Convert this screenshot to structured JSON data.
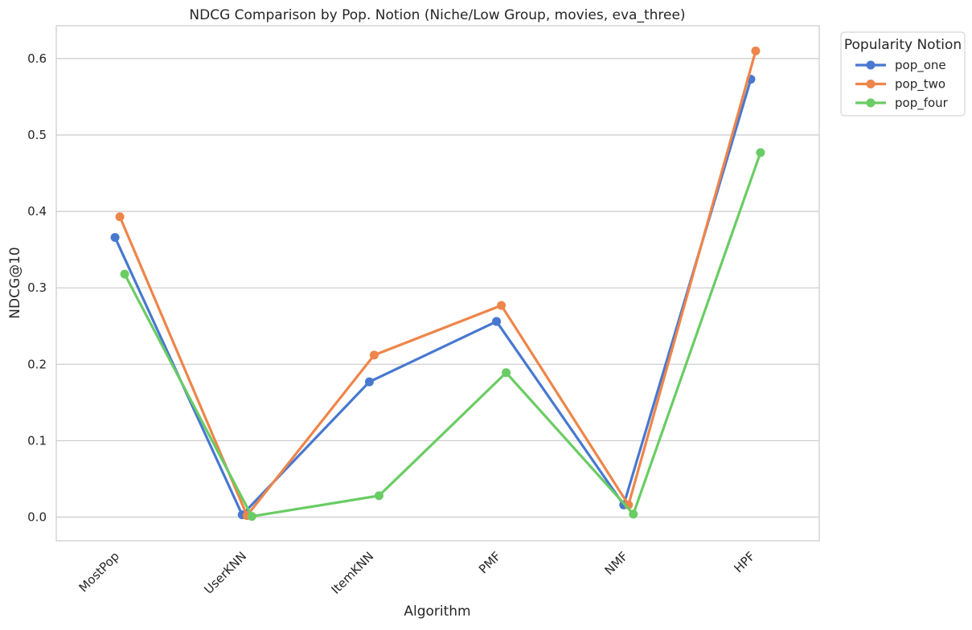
{
  "chart_data": {
    "type": "line",
    "title": "NDCG Comparison by Pop. Notion (Niche/Low Group, movies, eva_three)",
    "xlabel": "Algorithm",
    "ylabel": "NDCG@10",
    "categories": [
      "MostPop",
      "UserKNN",
      "ItemKNN",
      "PMF",
      "NMF",
      "HPF"
    ],
    "ylim": [
      -0.031,
      0.643
    ],
    "yticks": [
      0.0,
      0.1,
      0.2,
      0.3,
      0.4,
      0.5,
      0.6
    ],
    "ytick_labels": [
      "0.0",
      "0.1",
      "0.2",
      "0.3",
      "0.4",
      "0.5",
      "0.6"
    ],
    "grid": "horizontal",
    "legend": {
      "title": "Popularity Notion",
      "placement": "outside-top-right"
    },
    "series": [
      {
        "name": "pop_one",
        "color": "#4878d0",
        "values": [
          0.366,
          0.003,
          0.177,
          0.256,
          0.016,
          0.573
        ]
      },
      {
        "name": "pop_two",
        "color": "#ee854a",
        "values": [
          0.393,
          0.002,
          0.212,
          0.277,
          0.016,
          0.61
        ]
      },
      {
        "name": "pop_four",
        "color": "#6acc64",
        "values": [
          0.318,
          0.001,
          0.028,
          0.189,
          0.004,
          0.477
        ]
      }
    ]
  }
}
